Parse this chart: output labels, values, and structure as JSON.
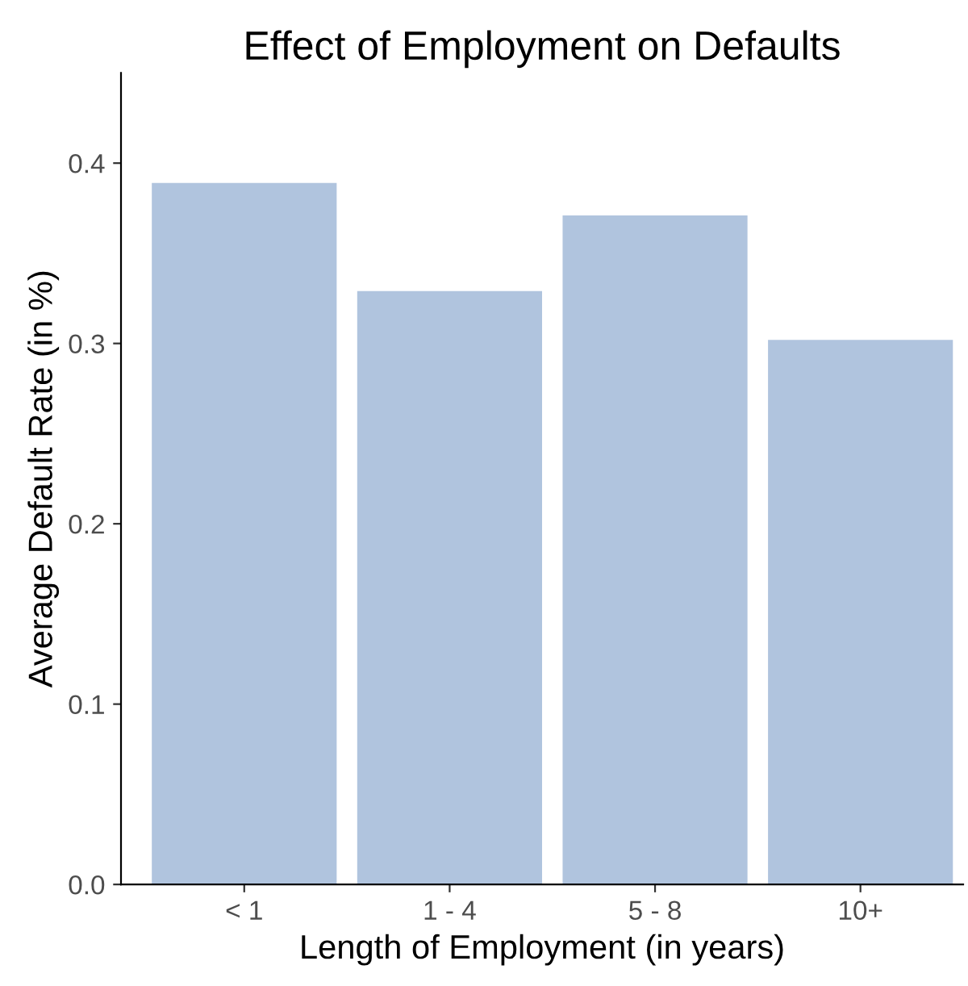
{
  "chart_data": {
    "type": "bar",
    "title": "Effect of Employment on Defaults",
    "xlabel": "Length of Employment (in years)",
    "ylabel": "Average Default Rate (in %)",
    "categories": [
      "< 1",
      "1 - 4",
      "5 - 8",
      "10+"
    ],
    "values": [
      0.389,
      0.329,
      0.371,
      0.302
    ],
    "color": "#b0c4de",
    "ylim": [
      0,
      0.45
    ],
    "yticks": [
      {
        "value": 0,
        "label": "0.0"
      },
      0.1,
      0.2,
      0.3,
      0.4
    ],
    "grid": false,
    "legend": false
  }
}
